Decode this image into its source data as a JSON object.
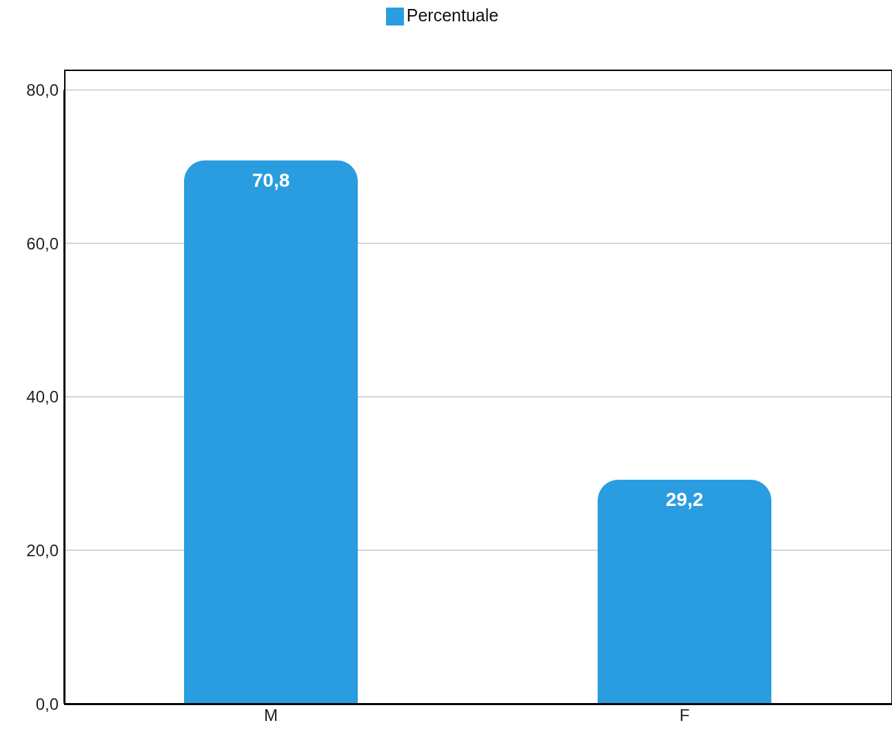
{
  "chart_data": {
    "type": "bar",
    "categories": [
      "M",
      "F"
    ],
    "series": [
      {
        "name": "Percentuale",
        "color": "#2a9de0",
        "values": [
          70.8,
          29.2
        ],
        "value_labels": [
          "70,8",
          "29,2"
        ]
      }
    ],
    "ylim": [
      0,
      80
    ],
    "yticks": [
      {
        "value": 0,
        "label": "0,0"
      },
      {
        "value": 20,
        "label": "20,0"
      },
      {
        "value": 40,
        "label": "40,0"
      },
      {
        "value": 60,
        "label": "60,0"
      },
      {
        "value": 80,
        "label": "80,0"
      }
    ],
    "grid": "y",
    "legend": "top"
  }
}
